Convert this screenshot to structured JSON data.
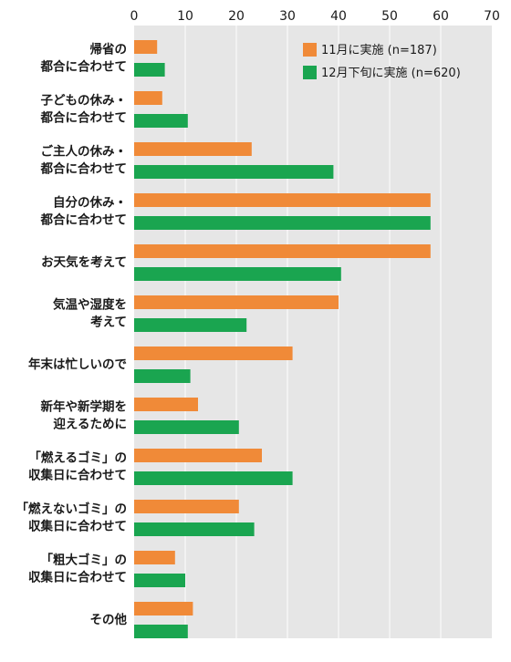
{
  "chart_data": {
    "type": "bar",
    "orientation": "horizontal",
    "xlim": [
      0,
      70
    ],
    "xticks": [
      0,
      10,
      20,
      30,
      40,
      50,
      60,
      70
    ],
    "grid": true,
    "legend_position": "top-right",
    "colors": {
      "background": "#e6e6e6",
      "grid": "#ffffff",
      "series1": "#f08a38",
      "series2": "#1aa550"
    },
    "categories": [
      [
        "帰省の",
        "都合に合わせて"
      ],
      [
        "子どもの休み・",
        "都合に合わせて"
      ],
      [
        "ご主人の休み・",
        "都合に合わせて"
      ],
      [
        "自分の休み・",
        "都合に合わせて"
      ],
      [
        "お天気を考えて"
      ],
      [
        "気温や湿度を",
        "考えて"
      ],
      [
        "年末は忙しいので"
      ],
      [
        "新年や新学期を",
        "迎えるために"
      ],
      [
        "「燃えるゴミ」の",
        "収集日に合わせて"
      ],
      [
        "「燃えないゴミ」の",
        "収集日に合わせて"
      ],
      [
        "「粗大ゴミ」の",
        "収集日に合わせて"
      ],
      [
        "その他"
      ]
    ],
    "series": [
      {
        "name": "11月に実施 (n=187)",
        "values": [
          4.5,
          5.5,
          23,
          58,
          58,
          40,
          31,
          12.5,
          25,
          20.5,
          8,
          11.5
        ]
      },
      {
        "name": "12月下旬に実施 (n=620)",
        "values": [
          6,
          10.5,
          39,
          58,
          40.5,
          22,
          11,
          20.5,
          31,
          23.5,
          10,
          10.5
        ]
      }
    ]
  }
}
